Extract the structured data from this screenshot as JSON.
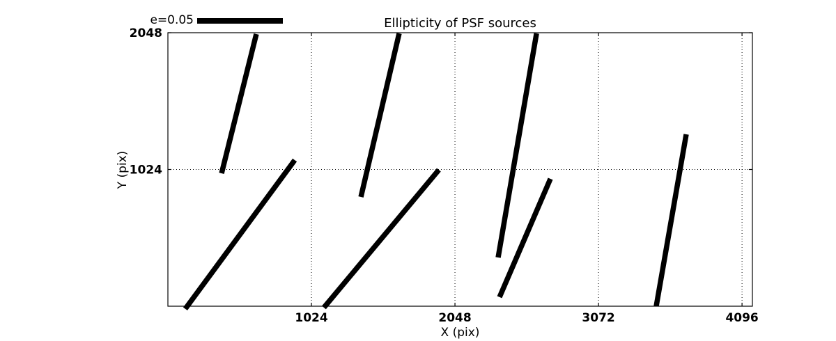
{
  "title": "Ellipticity of PSF sources",
  "legend": {
    "label": "e=0.05"
  },
  "axes": {
    "xlabel": "X (pix)",
    "ylabel": "Y (pix)"
  },
  "colors": {
    "foreground": "#000000",
    "background": "#ffffff"
  },
  "chart_data": {
    "type": "line",
    "subtype": "whisker-segments",
    "title": "Ellipticity of PSF sources",
    "xlabel": "X (pix)",
    "ylabel": "Y (pix)",
    "xlim": [
      0,
      4170
    ],
    "ylim": [
      0,
      2048
    ],
    "xticks": [
      1024,
      2048,
      3072,
      4096
    ],
    "yticks": [
      1024,
      2048
    ],
    "grid": "dotted",
    "legend_label": "e=0.05",
    "legend_position": "top-left-above-axes",
    "stroke_color": "#000000",
    "stroke_width_px": 7.5,
    "segments": [
      {
        "x1": 631,
        "y1": 2038,
        "x2": 383,
        "y2": 995
      },
      {
        "x1": 905,
        "y1": 1094,
        "x2": 124,
        "y2": -20
      },
      {
        "x1": 1650,
        "y1": 2043,
        "x2": 1377,
        "y2": 818
      },
      {
        "x1": 1933,
        "y1": 1021,
        "x2": 1113,
        "y2": -10
      },
      {
        "x1": 2630,
        "y1": 2043,
        "x2": 2356,
        "y2": 365
      },
      {
        "x1": 2729,
        "y1": 954,
        "x2": 2366,
        "y2": 68
      },
      {
        "x1": 3698,
        "y1": 1287,
        "x2": 3484,
        "y2": 0
      }
    ]
  }
}
